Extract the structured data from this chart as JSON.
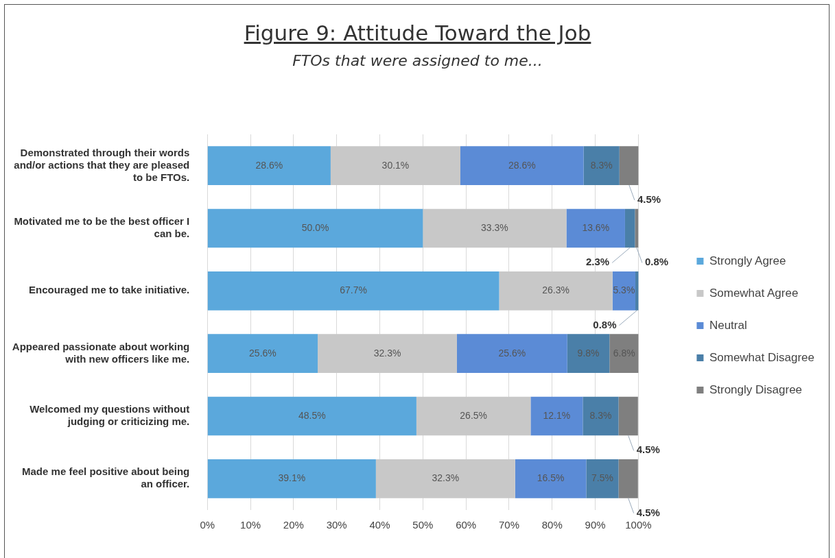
{
  "chart_data": {
    "type": "bar",
    "orientation": "horizontal",
    "stacked": true,
    "title": "Figure 9: Attitude Toward the Job",
    "subtitle": "FTOs that were assigned to me...",
    "categories": [
      "Demonstrated through their words and/or actions that they are pleased to be FTOs.",
      "Motivated me to be the best officer I can be.",
      "Encouraged me to take initiative.",
      "Appeared passionate about working with new officers like me.",
      "Welcomed my questions without judging or criticizing me.",
      "Made me feel positive about being an officer."
    ],
    "series": [
      {
        "name": "Strongly Agree",
        "color": "#5ba8dc",
        "values": [
          28.6,
          50.0,
          67.7,
          25.6,
          48.5,
          39.1
        ],
        "value_labels": [
          "28.6%",
          "50.0%",
          "67.7%",
          "25.6%",
          "48.5%",
          "39.1%"
        ]
      },
      {
        "name": "Somewhat Agree",
        "color": "#c8c8c8",
        "values": [
          30.1,
          33.3,
          26.3,
          32.3,
          26.5,
          32.3
        ],
        "value_labels": [
          "30.1%",
          "33.3%",
          "26.3%",
          "32.3%",
          "26.5%",
          "32.3%"
        ]
      },
      {
        "name": "Neutral",
        "color": "#5b8bd6",
        "values": [
          28.6,
          13.6,
          5.3,
          25.6,
          12.1,
          16.5
        ],
        "value_labels": [
          "28.6%",
          "13.6%",
          "5.3%",
          "25.6%",
          "12.1%",
          "16.5%"
        ]
      },
      {
        "name": "Somewhat Disagree",
        "color": "#4a7fa8",
        "values": [
          8.3,
          2.3,
          0.8,
          9.8,
          8.3,
          7.5
        ],
        "value_labels": [
          "8.3%",
          "2.3%",
          "0.8%",
          "9.8%",
          "8.3%",
          "7.5%"
        ]
      },
      {
        "name": "Strongly Disagree",
        "color": "#7f7f7f",
        "values": [
          4.5,
          0.8,
          0,
          6.8,
          4.5,
          4.5
        ],
        "value_labels": [
          "4.5%",
          "0.8%",
          null,
          "6.8%",
          "4.5%",
          "4.5%"
        ]
      }
    ],
    "xlim": [
      0,
      100
    ],
    "xticks": [
      {
        "value": 0,
        "label": "0%"
      },
      {
        "value": 10,
        "label": "10%"
      },
      {
        "value": 20,
        "label": "20%"
      },
      {
        "value": 30,
        "label": "30%"
      },
      {
        "value": 40,
        "label": "40%"
      },
      {
        "value": 50,
        "label": "50%"
      },
      {
        "value": 60,
        "label": "60%"
      },
      {
        "value": 70,
        "label": "70%"
      },
      {
        "value": 80,
        "label": "80%"
      },
      {
        "value": 90,
        "label": "90%"
      },
      {
        "value": 100,
        "label": "100%"
      }
    ],
    "grid": "x",
    "legend": "right"
  }
}
